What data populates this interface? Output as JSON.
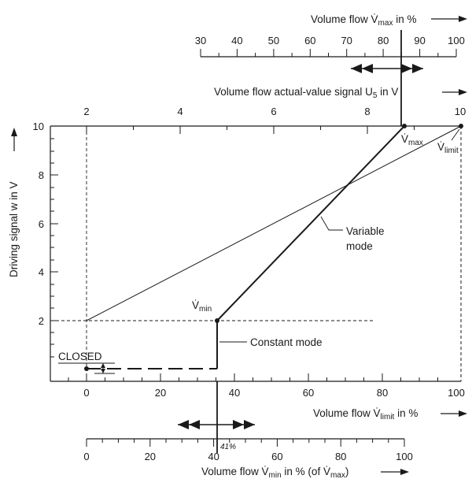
{
  "top_scale": {
    "ticks": [
      "30",
      "40",
      "50",
      "60",
      "70",
      "80",
      "90",
      "100"
    ],
    "title_prefix": "Volume flow V̇",
    "title_sub": "max",
    "title_suffix": " in %"
  },
  "u5_axis": {
    "ticks": [
      "2",
      "4",
      "6",
      "8",
      "10"
    ],
    "title_prefix": "Volume flow actual-value signal U",
    "title_sub": "5",
    "title_suffix": " in V"
  },
  "w_axis": {
    "ticks": [
      "2",
      "4",
      "6",
      "8",
      "10"
    ],
    "title": "Driving signal w in V"
  },
  "limit_axis": {
    "ticks": [
      "0",
      "20",
      "40",
      "60",
      "80",
      "100"
    ],
    "title_prefix": "Volume flow V̇",
    "title_sub": "limit",
    "title_suffix": " in %"
  },
  "min_scale": {
    "ticks": [
      "0",
      "20",
      "40",
      "60",
      "80",
      "100"
    ],
    "marker": "41%",
    "title_prefix": "Volume flow V̇",
    "title_sub": "min",
    "title_mid": " in % (of V̇",
    "title_sub2": "max",
    "title_end": ")"
  },
  "annotations": {
    "vmax_main": "V̇",
    "vmax_sub": "max",
    "vlimit_main": "V̇",
    "vlimit_sub": "limit",
    "vmin_main": "V̇",
    "vmin_sub": "min",
    "variable_mode_line1": "Variable",
    "variable_mode_line2": "mode",
    "constant_mode": "Constant mode",
    "closed": "CLOSED"
  },
  "colors": {
    "ink": "#1a1a1a",
    "background": "#ffffff"
  }
}
